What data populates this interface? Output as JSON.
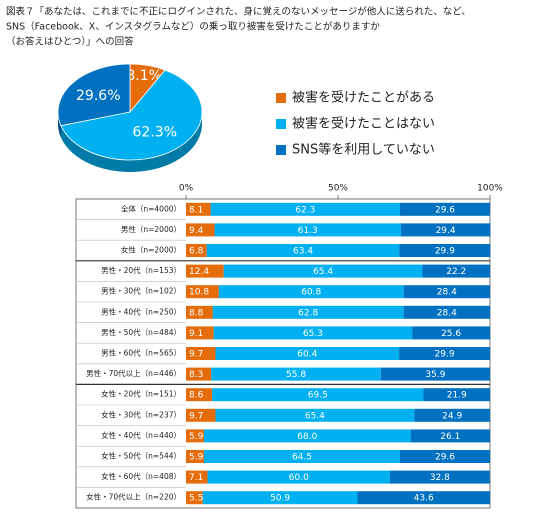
{
  "chart_data": [
    {
      "type": "pie",
      "title": [
        "図表７「あなたは、これまでに不正にログインされた、身に覚えのないメッセージが他人に送られた、など、",
        "SNS（Facebook、X、インスタグラムなど）の乗っ取り被害を受けたことがありますか",
        "（お答えはひとつ）」への回答"
      ],
      "categories": [
        "被害を受けたことがある",
        "被害を受けたことはない",
        "SNS等を利用していない"
      ],
      "values": [
        8.1,
        62.3,
        29.6
      ],
      "value_labels": [
        "8.1%",
        "62.3%",
        "29.6%"
      ],
      "colors": [
        "#e46c0a",
        "#00b0f0",
        "#0070c0"
      ]
    },
    {
      "type": "stacked-barh",
      "categories": [
        "全体（n=4000）",
        "男性（n=2000）",
        "女性（n=2000）",
        "男性・20代（n=153）",
        "男性・30代（n=102）",
        "男性・40代（n=250）",
        "男性・50代（n=484）",
        "男性・60代（n=565）",
        "男性・70代以上（n=446）",
        "女性・20代（n=151）",
        "女性・30代（n=237）",
        "女性・40代（n=440）",
        "女性・50代（n=544）",
        "女性・60代（n=408）",
        "女性・70代以上（n=220）"
      ],
      "xlim": [
        0,
        100
      ],
      "xticks": [
        {
          "value": 0,
          "label": "0%"
        },
        {
          "value": 50,
          "label": "50%"
        },
        {
          "value": 100,
          "label": "100%"
        }
      ],
      "series": [
        {
          "color": "#e46c0a",
          "values": [
            8.1,
            9.4,
            6.8,
            12.4,
            10.8,
            8.8,
            9.1,
            9.7,
            8.3,
            8.6,
            9.7,
            5.9,
            5.9,
            7.1,
            5.5
          ],
          "value_labels": [
            "8.1",
            "9.4",
            "6.8",
            "12.4",
            "10.8",
            "8.8",
            "9.1",
            "9.7",
            "8.3",
            "8.6",
            "9.7",
            "5.9",
            "5.9",
            "7.1",
            "5.5"
          ]
        },
        {
          "color": "#00b0f0",
          "values": [
            62.3,
            61.3,
            63.4,
            65.4,
            60.8,
            62.8,
            65.3,
            60.4,
            55.8,
            69.5,
            65.4,
            68.0,
            64.5,
            60.0,
            50.9
          ],
          "value_labels": [
            "62.3",
            "61.3",
            "63.4",
            "65.4",
            "60.8",
            "62.8",
            "65.3",
            "60.4",
            "55.8",
            "69.5",
            "65.4",
            "68.0",
            "64.5",
            "60.0",
            "50.9"
          ]
        },
        {
          "color": "#0070c0",
          "values": [
            29.6,
            29.4,
            29.9,
            22.2,
            28.4,
            28.4,
            25.6,
            29.9,
            35.9,
            21.9,
            24.9,
            26.1,
            29.6,
            32.8,
            43.6
          ],
          "value_labels": [
            "29.6",
            "29.4",
            "29.9",
            "22.2",
            "28.4",
            "28.4",
            "25.6",
            "29.9",
            "35.9",
            "21.9",
            "24.9",
            "26.1",
            "29.6",
            "32.8",
            "43.6"
          ]
        }
      ]
    }
  ]
}
